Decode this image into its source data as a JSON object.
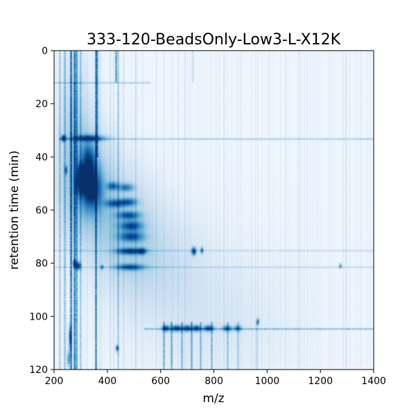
{
  "chart_data": {
    "type": "heatmap",
    "title": "333-120-BeadsOnly-Low3-L-X12K",
    "xlabel": "m/z",
    "ylabel": "retention time (min)",
    "xlim": [
      200,
      1400
    ],
    "ylim": [
      120,
      0
    ],
    "x_ticks": [
      "200",
      "400",
      "600",
      "800",
      "1000",
      "1200",
      "1400"
    ],
    "y_ticks": [
      "0",
      "20",
      "40",
      "60",
      "80",
      "100",
      "120"
    ],
    "colormap": "Blues",
    "grid": false,
    "colors": {
      "low": "#f7fbff",
      "mid": "#6baed6",
      "high": "#08306b"
    },
    "diffuse_regions": [
      {
        "mz": 330,
        "rt": 52,
        "smz": 70,
        "srt": 14,
        "intensity": 0.35
      },
      {
        "mz": 470,
        "rt": 68,
        "smz": 80,
        "srt": 14,
        "intensity": 0.25
      },
      {
        "mz": 600,
        "rt": 80,
        "smz": 110,
        "srt": 14,
        "intensity": 0.12
      },
      {
        "mz": 800,
        "rt": 100,
        "smz": 200,
        "srt": 18,
        "intensity": 0.08
      },
      {
        "mz": 280,
        "rt": 30,
        "smz": 40,
        "srt": 18,
        "intensity": 0.2
      }
    ],
    "streaks": [
      {
        "mz": 262,
        "rt_start": 0,
        "rt_end": 120,
        "intensity": 0.9
      },
      {
        "mz": 275,
        "rt_start": 0,
        "rt_end": 120,
        "intensity": 0.95
      },
      {
        "mz": 282,
        "rt_start": 0,
        "rt_end": 120,
        "intensity": 0.7
      },
      {
        "mz": 240,
        "rt_start": 0,
        "rt_end": 120,
        "intensity": 0.45
      },
      {
        "mz": 222,
        "rt_start": 0,
        "rt_end": 120,
        "intensity": 0.35
      },
      {
        "mz": 300,
        "rt_start": 0,
        "rt_end": 120,
        "intensity": 0.4
      },
      {
        "mz": 355,
        "rt_start": 0,
        "rt_end": 120,
        "intensity": 0.95
      },
      {
        "mz": 362,
        "rt_start": 0,
        "rt_end": 40,
        "intensity": 0.7
      },
      {
        "mz": 432,
        "rt_start": 0,
        "rt_end": 12,
        "intensity": 0.75
      },
      {
        "mz": 440,
        "rt_start": 0,
        "rt_end": 120,
        "intensity": 0.35
      },
      {
        "mz": 505,
        "rt_start": 0,
        "rt_end": 120,
        "intensity": 0.15
      },
      {
        "mz": 720,
        "rt_start": 0,
        "rt_end": 12,
        "intensity": 0.2
      },
      {
        "mz": 610,
        "rt_start": 102,
        "rt_end": 120,
        "intensity": 0.5
      },
      {
        "mz": 640,
        "rt_start": 102,
        "rt_end": 120,
        "intensity": 0.55
      },
      {
        "mz": 680,
        "rt_start": 102,
        "rt_end": 120,
        "intensity": 0.5
      },
      {
        "mz": 715,
        "rt_start": 102,
        "rt_end": 120,
        "intensity": 0.55
      },
      {
        "mz": 750,
        "rt_start": 102,
        "rt_end": 120,
        "intensity": 0.45
      },
      {
        "mz": 790,
        "rt_start": 102,
        "rt_end": 120,
        "intensity": 0.45
      },
      {
        "mz": 850,
        "rt_start": 102,
        "rt_end": 120,
        "intensity": 0.35
      },
      {
        "mz": 890,
        "rt_start": 102,
        "rt_end": 120,
        "intensity": 0.3
      },
      {
        "mz": 960,
        "rt_start": 102,
        "rt_end": 120,
        "intensity": 0.2
      }
    ],
    "bands": [
      {
        "rt": 12,
        "mz_start": 200,
        "mz_end": 560,
        "intensity": 0.3
      },
      {
        "rt": 33,
        "mz_start": 220,
        "mz_end": 1400,
        "intensity": 0.3
      },
      {
        "rt": 75,
        "mz_start": 200,
        "mz_end": 1400,
        "intensity": 0.18
      },
      {
        "rt": 81.5,
        "mz_start": 200,
        "mz_end": 1400,
        "intensity": 0.2
      },
      {
        "rt": 104.5,
        "mz_start": 540,
        "mz_end": 1400,
        "intensity": 0.45
      }
    ],
    "spots": [
      {
        "mz": 235,
        "rt": 33,
        "smz": 6,
        "srt": 0.8,
        "intensity": 1.0
      },
      {
        "mz": 330,
        "rt": 33,
        "smz": 40,
        "srt": 0.8,
        "intensity": 0.85
      },
      {
        "mz": 340,
        "rt": 52,
        "smz": 24,
        "srt": 5,
        "intensity": 1.0
      },
      {
        "mz": 330,
        "rt": 42,
        "smz": 18,
        "srt": 5,
        "intensity": 0.8
      },
      {
        "mz": 300,
        "rt": 50,
        "smz": 12,
        "srt": 3,
        "intensity": 0.7
      },
      {
        "mz": 420,
        "rt": 51,
        "smz": 14,
        "srt": 1,
        "intensity": 0.65
      },
      {
        "mz": 470,
        "rt": 51.5,
        "smz": 20,
        "srt": 1,
        "intensity": 0.6
      },
      {
        "mz": 430,
        "rt": 57.5,
        "smz": 26,
        "srt": 1,
        "intensity": 0.7
      },
      {
        "mz": 480,
        "rt": 57,
        "smz": 22,
        "srt": 1,
        "intensity": 0.65
      },
      {
        "mz": 480,
        "rt": 62,
        "smz": 28,
        "srt": 1,
        "intensity": 0.75
      },
      {
        "mz": 490,
        "rt": 66,
        "smz": 28,
        "srt": 1.2,
        "intensity": 0.8
      },
      {
        "mz": 490,
        "rt": 70,
        "smz": 30,
        "srt": 1.2,
        "intensity": 0.75
      },
      {
        "mz": 485,
        "rt": 75.5,
        "smz": 32,
        "srt": 0.8,
        "intensity": 0.9
      },
      {
        "mz": 530,
        "rt": 75.5,
        "smz": 10,
        "srt": 0.8,
        "intensity": 0.7
      },
      {
        "mz": 485,
        "rt": 81.5,
        "smz": 34,
        "srt": 0.8,
        "intensity": 0.75
      },
      {
        "mz": 725,
        "rt": 75.5,
        "smz": 6,
        "srt": 1,
        "intensity": 1.0
      },
      {
        "mz": 755,
        "rt": 75.2,
        "smz": 4,
        "srt": 0.8,
        "intensity": 0.7
      },
      {
        "mz": 290,
        "rt": 81,
        "smz": 7,
        "srt": 1,
        "intensity": 1.0
      },
      {
        "mz": 276,
        "rt": 80,
        "smz": 4,
        "srt": 0.8,
        "intensity": 0.85
      },
      {
        "mz": 380,
        "rt": 81.5,
        "smz": 4,
        "srt": 0.6,
        "intensity": 0.6
      },
      {
        "mz": 1275,
        "rt": 81,
        "smz": 4,
        "srt": 0.6,
        "intensity": 0.55
      },
      {
        "mz": 965,
        "rt": 102,
        "smz": 4,
        "srt": 0.8,
        "intensity": 0.7
      },
      {
        "mz": 437,
        "rt": 112,
        "smz": 4,
        "srt": 0.8,
        "intensity": 0.8
      },
      {
        "mz": 620,
        "rt": 104.5,
        "smz": 10,
        "srt": 0.8,
        "intensity": 0.9
      },
      {
        "mz": 660,
        "rt": 104.5,
        "smz": 14,
        "srt": 0.8,
        "intensity": 0.95
      },
      {
        "mz": 700,
        "rt": 104.5,
        "smz": 12,
        "srt": 0.8,
        "intensity": 0.9
      },
      {
        "mz": 735,
        "rt": 104.5,
        "smz": 10,
        "srt": 0.8,
        "intensity": 0.95
      },
      {
        "mz": 780,
        "rt": 104.5,
        "smz": 14,
        "srt": 0.8,
        "intensity": 0.85
      },
      {
        "mz": 850,
        "rt": 104.5,
        "smz": 12,
        "srt": 0.8,
        "intensity": 0.7
      },
      {
        "mz": 890,
        "rt": 104.5,
        "smz": 10,
        "srt": 0.8,
        "intensity": 0.6
      },
      {
        "mz": 260,
        "rt": 108,
        "smz": 4,
        "srt": 3,
        "intensity": 0.7
      },
      {
        "mz": 255,
        "rt": 116,
        "smz": 4,
        "srt": 2,
        "intensity": 0.6
      },
      {
        "mz": 300,
        "rt": 45,
        "smz": 8,
        "srt": 2,
        "intensity": 0.6
      },
      {
        "mz": 245,
        "rt": 45,
        "smz": 4,
        "srt": 1,
        "intensity": 0.6
      }
    ]
  }
}
